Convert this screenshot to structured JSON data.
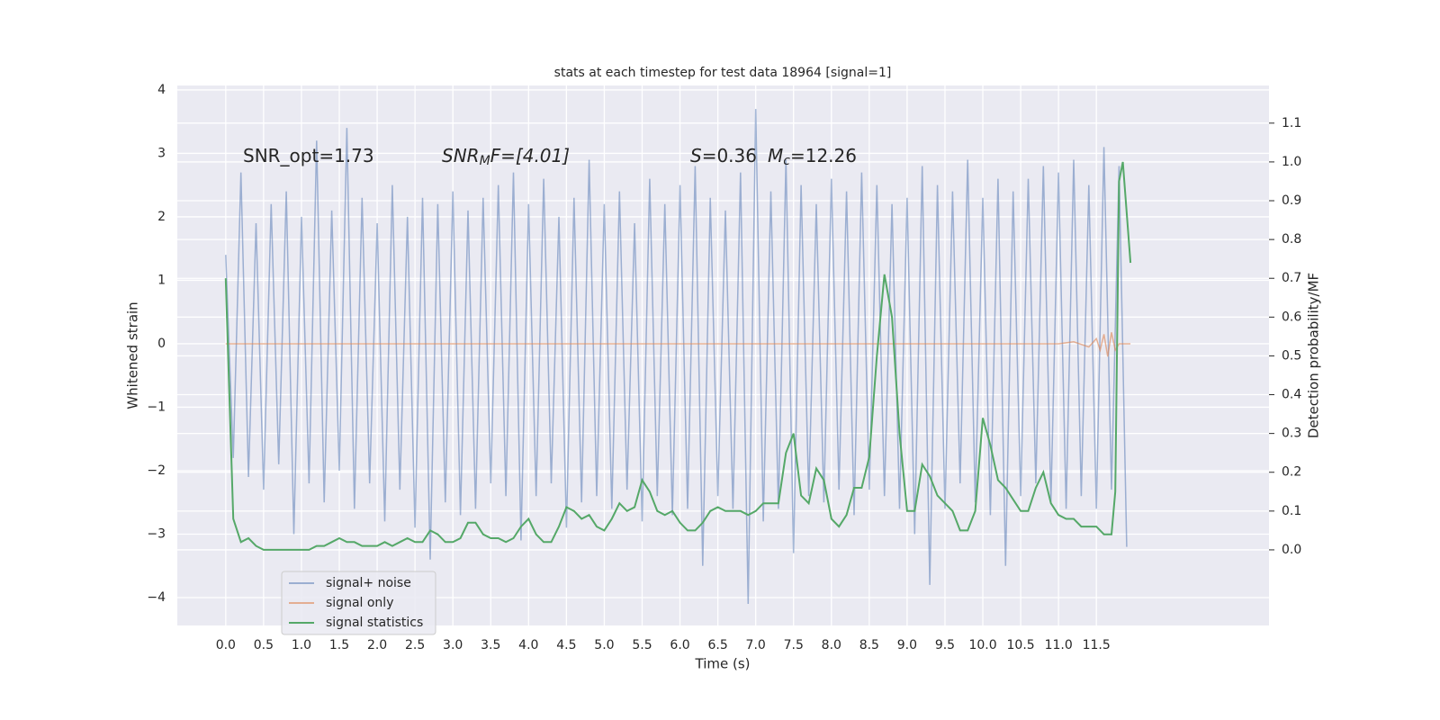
{
  "chart_data": {
    "type": "line",
    "title": "stats at each timestep for test data 18964 [signal=1]",
    "xlabel": "Time (s)",
    "ylabel": "Whitened strain",
    "y2label": "Detection probability/MF",
    "xlim": [
      -0.64,
      13.78
    ],
    "ylim": [
      -4.44,
      4.07
    ],
    "y2lim": [
      -0.195,
      1.197
    ],
    "xticks": [
      {
        "value": 0,
        "label": "0.0"
      },
      {
        "value": 0.5,
        "label": "0.5"
      },
      {
        "value": 1,
        "label": "1.0"
      },
      {
        "value": 1.5,
        "label": "1.5"
      },
      {
        "value": 2,
        "label": "2.0"
      },
      {
        "value": 2.5,
        "label": "2.5"
      },
      {
        "value": 3,
        "label": "3.0"
      },
      {
        "value": 3.5,
        "label": "3.5"
      },
      {
        "value": 4,
        "label": "4.0"
      },
      {
        "value": 4.5,
        "label": "4.5"
      },
      {
        "value": 5,
        "label": "5.0"
      },
      {
        "value": 5.5,
        "label": "5.5"
      },
      {
        "value": 6,
        "label": "6.0"
      },
      {
        "value": 6.5,
        "label": "6.5"
      },
      {
        "value": 7,
        "label": "7.0"
      },
      {
        "value": 7.5,
        "label": "7.5"
      },
      {
        "value": 8,
        "label": "8.0"
      },
      {
        "value": 8.5,
        "label": "8.5"
      },
      {
        "value": 9,
        "label": "9.0"
      },
      {
        "value": 9.5,
        "label": "9.5"
      },
      {
        "value": 10,
        "label": "10.0"
      },
      {
        "value": 10.5,
        "label": "10.5"
      },
      {
        "value": 11,
        "label": "11.0"
      },
      {
        "value": 11.5,
        "label": "11.5"
      }
    ],
    "yticks": [
      {
        "value": -4,
        "label": "−4"
      },
      {
        "value": -3,
        "label": "−3"
      },
      {
        "value": -2,
        "label": "−2"
      },
      {
        "value": -1,
        "label": "−1"
      },
      0,
      1,
      2,
      3,
      4
    ],
    "y2ticks": [
      {
        "value": 0,
        "label": "0.0"
      },
      {
        "value": 0.1,
        "label": "0.1"
      },
      {
        "value": 0.2,
        "label": "0.2"
      },
      {
        "value": 0.3,
        "label": "0.3"
      },
      {
        "value": 0.4,
        "label": "0.4"
      },
      {
        "value": 0.5,
        "label": "0.5"
      },
      {
        "value": 0.6,
        "label": "0.6"
      },
      {
        "value": 0.7,
        "label": "0.7"
      },
      {
        "value": 0.8,
        "label": "0.8"
      },
      {
        "value": 0.9,
        "label": "0.9"
      },
      {
        "value": 1,
        "label": "1.0"
      },
      {
        "value": 1.1,
        "label": "1.1"
      }
    ],
    "grid": true,
    "legend": "lower left",
    "annotations": [
      [
        "SNR_opt=1.73"
      ],
      [
        "SNR",
        "M",
        "F=[4.01]"
      ],
      [
        "S",
        "=0.36",
        "M",
        "c",
        "=12.26"
      ]
    ],
    "series": [
      {
        "name": "signal+ noise",
        "color": "#4c72b0",
        "opacity": 0.5,
        "x": [
          0,
          0.1,
          0.2,
          0.3,
          0.4,
          0.5,
          0.6,
          0.7,
          0.8,
          0.9,
          1,
          1.1,
          1.2,
          1.3,
          1.4,
          1.5,
          1.6,
          1.7,
          1.8,
          1.9,
          2,
          2.1,
          2.2,
          2.3,
          2.4,
          2.5,
          2.6,
          2.7,
          2.8,
          2.9,
          3,
          3.1,
          3.2,
          3.3,
          3.4,
          3.5,
          3.6,
          3.7,
          3.8,
          3.9,
          4,
          4.1,
          4.2,
          4.3,
          4.4,
          4.5,
          4.6,
          4.7,
          4.8,
          4.9,
          5,
          5.1,
          5.2,
          5.3,
          5.4,
          5.5,
          5.6,
          5.7,
          5.8,
          5.9,
          6,
          6.1,
          6.2,
          6.3,
          6.4,
          6.5,
          6.6,
          6.7,
          6.8,
          6.9,
          7,
          7.1,
          7.2,
          7.3,
          7.4,
          7.5,
          7.6,
          7.7,
          7.8,
          7.9,
          8,
          8.1,
          8.2,
          8.3,
          8.4,
          8.5,
          8.6,
          8.7,
          8.8,
          8.9,
          9,
          9.1,
          9.2,
          9.3,
          9.4,
          9.5,
          9.6,
          9.7,
          9.8,
          9.9,
          10,
          10.1,
          10.2,
          10.3,
          10.4,
          10.5,
          10.6,
          10.7,
          10.8,
          10.9,
          11,
          11.1,
          11.2,
          11.3,
          11.4,
          11.5,
          11.6,
          11.7,
          11.8,
          11.9
        ],
        "values": [
          1.4,
          -1.8,
          2.7,
          -2.1,
          1.9,
          -2.3,
          2.2,
          -1.9,
          2.4,
          -3.0,
          2.0,
          -2.2,
          3.2,
          -2.5,
          2.1,
          -2.0,
          3.4,
          -2.6,
          2.3,
          -2.2,
          1.9,
          -2.8,
          2.5,
          -2.3,
          2.0,
          -2.9,
          2.3,
          -3.4,
          2.2,
          -2.5,
          2.4,
          -2.7,
          2.1,
          -2.6,
          2.3,
          -2.2,
          2.5,
          -2.4,
          2.7,
          -3.1,
          2.2,
          -2.4,
          2.6,
          -2.2,
          2.0,
          -2.9,
          2.3,
          -2.5,
          2.9,
          -2.4,
          2.2,
          -2.6,
          2.4,
          -2.3,
          1.9,
          -2.8,
          2.6,
          -2.4,
          2.2,
          -2.7,
          2.5,
          -2.6,
          2.8,
          -3.5,
          2.3,
          -2.4,
          2.1,
          -2.6,
          2.7,
          -4.1,
          3.7,
          -2.8,
          2.4,
          -2.6,
          2.9,
          -3.3,
          2.5,
          -2.4,
          2.2,
          -2.5,
          2.6,
          -2.3,
          2.4,
          -2.7,
          2.7,
          -2.3,
          2.5,
          -2.4,
          2.2,
          -2.6,
          2.3,
          -3.0,
          2.8,
          -3.8,
          2.5,
          -2.6,
          2.4,
          -2.2,
          2.9,
          -2.5,
          2.3,
          -2.7,
          2.6,
          -3.5,
          2.4,
          -2.4,
          2.6,
          -2.2,
          2.8,
          -2.5,
          2.7,
          -2.6,
          2.9,
          -2.4,
          2.5,
          -2.6,
          3.1,
          -2.3,
          2.8,
          -3.2
        ]
      },
      {
        "name": "signal only",
        "color": "#dd8452",
        "opacity": 0.6,
        "x": [
          0,
          11,
          11.2,
          11.4,
          11.5,
          11.55,
          11.6,
          11.65,
          11.7,
          11.75,
          11.8,
          11.95
        ],
        "values": [
          0,
          0,
          0.03,
          -0.05,
          0.08,
          -0.1,
          0.15,
          -0.2,
          0.18,
          -0.1,
          0,
          0
        ]
      },
      {
        "name": "signal statistics",
        "color": "#55a868",
        "opacity": 1,
        "axis": "y2",
        "x": [
          0,
          0.1,
          0.2,
          0.3,
          0.4,
          0.5,
          0.6,
          0.7,
          0.8,
          0.9,
          1,
          1.1,
          1.2,
          1.3,
          1.4,
          1.5,
          1.6,
          1.7,
          1.8,
          1.9,
          2,
          2.1,
          2.2,
          2.3,
          2.4,
          2.5,
          2.6,
          2.7,
          2.8,
          2.9,
          3,
          3.1,
          3.2,
          3.3,
          3.4,
          3.5,
          3.6,
          3.7,
          3.8,
          3.9,
          4,
          4.1,
          4.2,
          4.3,
          4.4,
          4.5,
          4.6,
          4.7,
          4.8,
          4.9,
          5,
          5.1,
          5.2,
          5.3,
          5.4,
          5.5,
          5.6,
          5.7,
          5.8,
          5.9,
          6,
          6.1,
          6.2,
          6.3,
          6.4,
          6.5,
          6.6,
          6.7,
          6.8,
          6.9,
          7,
          7.1,
          7.2,
          7.3,
          7.4,
          7.5,
          7.6,
          7.7,
          7.8,
          7.9,
          8,
          8.1,
          8.2,
          8.3,
          8.4,
          8.5,
          8.6,
          8.7,
          8.8,
          8.9,
          9,
          9.1,
          9.2,
          9.3,
          9.4,
          9.5,
          9.6,
          9.7,
          9.8,
          9.9,
          10,
          10.1,
          10.2,
          10.3,
          10.4,
          10.5,
          10.6,
          10.7,
          10.8,
          10.9,
          11,
          11.1,
          11.2,
          11.3,
          11.4,
          11.5,
          11.6,
          11.7,
          11.75,
          11.8,
          11.85,
          11.95
        ],
        "values": [
          0.7,
          0.08,
          0.02,
          0.03,
          0.01,
          0.0,
          0.0,
          0.0,
          0.0,
          0.0,
          0.0,
          0.0,
          0.01,
          0.01,
          0.02,
          0.03,
          0.02,
          0.02,
          0.01,
          0.01,
          0.01,
          0.02,
          0.01,
          0.02,
          0.03,
          0.02,
          0.02,
          0.05,
          0.04,
          0.02,
          0.02,
          0.03,
          0.07,
          0.07,
          0.04,
          0.03,
          0.03,
          0.02,
          0.03,
          0.06,
          0.08,
          0.04,
          0.02,
          0.02,
          0.06,
          0.11,
          0.1,
          0.08,
          0.09,
          0.06,
          0.05,
          0.08,
          0.12,
          0.1,
          0.11,
          0.18,
          0.15,
          0.1,
          0.09,
          0.1,
          0.07,
          0.05,
          0.05,
          0.07,
          0.1,
          0.11,
          0.1,
          0.1,
          0.1,
          0.09,
          0.1,
          0.12,
          0.12,
          0.12,
          0.25,
          0.3,
          0.14,
          0.12,
          0.21,
          0.18,
          0.08,
          0.06,
          0.09,
          0.16,
          0.16,
          0.24,
          0.5,
          0.71,
          0.6,
          0.3,
          0.1,
          0.1,
          0.22,
          0.19,
          0.14,
          0.12,
          0.1,
          0.05,
          0.05,
          0.1,
          0.34,
          0.27,
          0.18,
          0.16,
          0.13,
          0.1,
          0.1,
          0.16,
          0.2,
          0.12,
          0.09,
          0.08,
          0.08,
          0.06,
          0.06,
          0.06,
          0.04,
          0.04,
          0.15,
          0.95,
          1.0,
          0.74
        ]
      }
    ]
  }
}
